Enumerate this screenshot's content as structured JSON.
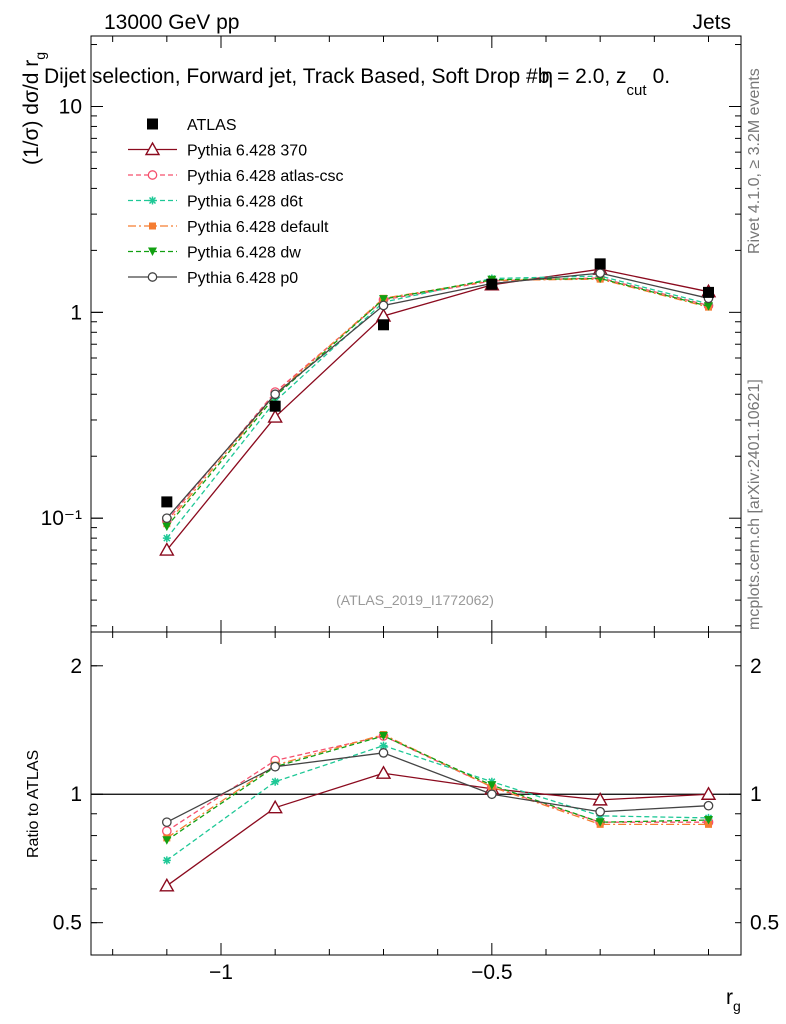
{
  "header": {
    "energy_label": "13000 GeV pp",
    "category_label": "Jets",
    "title": "Dijet selection, Forward jet, Track Based, Soft Drop #b",
    "title_suffix_1": "= 2.0, z",
    "title_suffix_sub": "cut",
    "title_suffix_2": "0.",
    "beta_symbol": "η"
  },
  "side_text": {
    "rivet": "Rivet 4.1.0, ≥ 3.2M events",
    "mcplots": "mcplots.cern.ch [arXiv:2401.10621]"
  },
  "analysis_tag": "(ATLAS_2019_I1772062)",
  "colors": {
    "ATLAS": "#000000",
    "Pythia 6.428 370": "#8b0a1e",
    "Pythia 6.428 atlas-csc": "#f5506e",
    "Pythia 6.428 d6t": "#1ec896",
    "Pythia 6.428 default": "#f57d32",
    "Pythia 6.428 dw": "#12a012",
    "Pythia 6.428 p0": "#444444"
  },
  "chart_data": [
    {
      "type": "line",
      "panel": "main",
      "title": "Dijet selection, Forward jet, Track Based, Soft Drop #b = 2.0, z cut 0.",
      "xlabel": "r_g",
      "ylabel": "(1/σ) dσ/d r_g",
      "yscale": "log",
      "xlim": [
        -1.24,
        -0.04
      ],
      "ylim": [
        0.028,
        22
      ],
      "y_ticks": [
        {
          "value": 0.1,
          "label": "10⁻¹"
        },
        {
          "value": 1,
          "label": "1"
        },
        {
          "value": 10,
          "label": "10"
        }
      ],
      "x": [
        -1.1,
        -0.9,
        -0.7,
        -0.5,
        -0.3,
        -0.1
      ],
      "series": [
        {
          "name": "ATLAS",
          "marker": "square",
          "dash": "none",
          "values": [
            0.12,
            0.35,
            0.87,
            1.37,
            1.72,
            1.25
          ]
        },
        {
          "name": "Pythia 6.428 370",
          "marker": "triangle-open",
          "dash": "solid",
          "values": [
            0.07,
            0.31,
            0.96,
            1.36,
            1.62,
            1.26
          ]
        },
        {
          "name": "Pythia 6.428 atlas-csc",
          "marker": "circle-open",
          "dash": "dashed",
          "values": [
            0.097,
            0.41,
            1.15,
            1.42,
            1.47,
            1.08
          ]
        },
        {
          "name": "Pythia 6.428 d6t",
          "marker": "star",
          "dash": "dashed",
          "values": [
            0.08,
            0.37,
            1.12,
            1.46,
            1.5,
            1.1
          ]
        },
        {
          "name": "Pythia 6.428 default",
          "marker": "square-small",
          "dash": "dashdot",
          "values": [
            0.094,
            0.4,
            1.17,
            1.43,
            1.45,
            1.06
          ]
        },
        {
          "name": "Pythia 6.428 dw",
          "marker": "triangle-down",
          "dash": "dashed",
          "values": [
            0.091,
            0.39,
            1.16,
            1.44,
            1.46,
            1.07
          ]
        },
        {
          "name": "Pythia 6.428 p0",
          "marker": "circle-open",
          "dash": "solid",
          "values": [
            0.1,
            0.4,
            1.08,
            1.38,
            1.55,
            1.17
          ]
        }
      ]
    },
    {
      "type": "line",
      "panel": "ratio",
      "xlabel": "r_g",
      "ylabel": "Ratio to ATLAS",
      "yscale": "log",
      "xlim": [
        -1.24,
        -0.04
      ],
      "ylim": [
        0.42,
        2.4
      ],
      "y_ticks": [
        {
          "value": 0.5,
          "label": "0.5"
        },
        {
          "value": 1,
          "label": "1"
        },
        {
          "value": 2,
          "label": "2"
        }
      ],
      "x_ticks": [
        {
          "value": -1,
          "label": "−1"
        },
        {
          "value": -0.5,
          "label": "−0.5"
        }
      ],
      "reference_line": 1,
      "x": [
        -1.1,
        -0.9,
        -0.7,
        -0.5,
        -0.3,
        -0.1
      ],
      "series": [
        {
          "name": "Pythia 6.428 370",
          "marker": "triangle-open",
          "dash": "solid",
          "values": [
            0.61,
            0.93,
            1.12,
            1.03,
            0.97,
            1.0
          ]
        },
        {
          "name": "Pythia 6.428 atlas-csc",
          "marker": "circle-open",
          "dash": "dashed",
          "values": [
            0.82,
            1.2,
            1.37,
            1.04,
            0.86,
            0.86
          ]
        },
        {
          "name": "Pythia 6.428 d6t",
          "marker": "star",
          "dash": "dashed",
          "values": [
            0.7,
            1.07,
            1.3,
            1.07,
            0.89,
            0.88
          ]
        },
        {
          "name": "Pythia 6.428 default",
          "marker": "square-small",
          "dash": "dashdot",
          "values": [
            0.79,
            1.17,
            1.38,
            1.04,
            0.85,
            0.85
          ]
        },
        {
          "name": "Pythia 6.428 dw",
          "marker": "triangle-down",
          "dash": "dashed",
          "values": [
            0.78,
            1.16,
            1.37,
            1.05,
            0.86,
            0.87
          ]
        },
        {
          "name": "Pythia 6.428 p0",
          "marker": "circle-open",
          "dash": "solid",
          "values": [
            0.86,
            1.16,
            1.25,
            1.0,
            0.91,
            0.94
          ]
        }
      ]
    }
  ]
}
